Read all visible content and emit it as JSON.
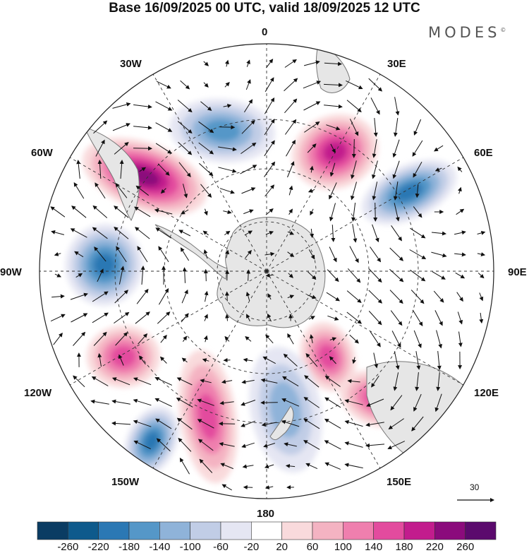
{
  "header": {
    "title": "Base 16/09/2025 00 UTC, valid 18/09/2025 12 UTC",
    "brand": "MODES",
    "brand_mark": "©"
  },
  "map": {
    "projection": "south polar stereographic",
    "longitude_labels": [
      "0",
      "30E",
      "60E",
      "90E",
      "120E",
      "150E",
      "180",
      "150W",
      "120W",
      "90W",
      "60W",
      "30W"
    ],
    "reference_vector": "30",
    "anomalies": [
      {
        "region": "south-atlantic-east",
        "value": 190
      },
      {
        "region": "drake-passage-north",
        "value": 250
      },
      {
        "region": "indian-ocean-south",
        "value": -190
      },
      {
        "region": "bellingshausen-sea",
        "value": -200
      },
      {
        "region": "south-atlantic-central",
        "value": -140
      },
      {
        "region": "south-pacific-east",
        "value": 140
      },
      {
        "region": "south-pacific-central",
        "value": 150
      },
      {
        "region": "tasman-sea-south",
        "value": 140
      },
      {
        "region": "southern-ocean-east",
        "value": 150
      },
      {
        "region": "new-zealand-south",
        "value": -120
      },
      {
        "region": "pacific-southwest",
        "value": -200
      }
    ]
  },
  "colorbar": {
    "labels": [
      "-260",
      "-220",
      "-180",
      "-140",
      "-100",
      "-60",
      "-20",
      "20",
      "60",
      "100",
      "140",
      "180",
      "220",
      "260"
    ],
    "colors": [
      "#0a3c63",
      "#0e5a8c",
      "#2b78b4",
      "#5597c8",
      "#8fb3d9",
      "#c1cde6",
      "#e5e6f3",
      "#ffffff",
      "#f9dadc",
      "#f4b3c2",
      "#ef7fae",
      "#e34b9e",
      "#c21c8d",
      "#8b0b7c",
      "#5b0a6d"
    ]
  }
}
